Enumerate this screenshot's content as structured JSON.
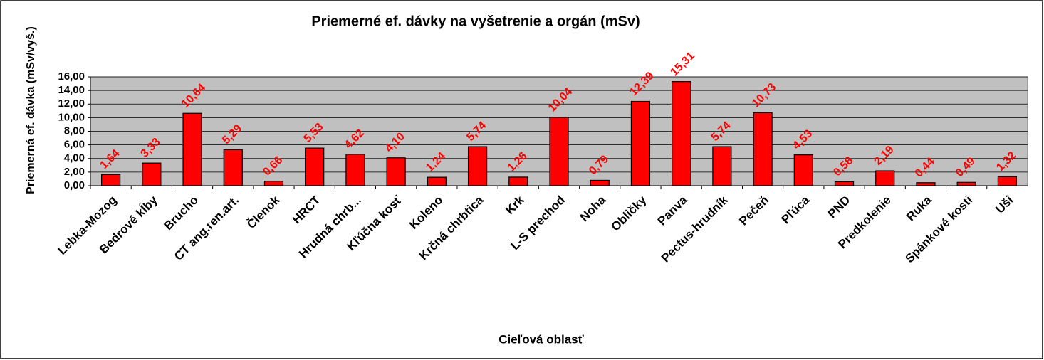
{
  "chart_data": {
    "type": "bar",
    "title": "Priemerné ef. dávky na vyšetrenie a orgán (mSv)",
    "x_label": "Cieľová oblasť",
    "y_label": "Priemerná ef. dávka (mSv/vyš.)",
    "categories": [
      "Lebka-Mozog",
      "Bedrové kĺby",
      "Brucho",
      "CT ang.ren.art.",
      "Členok",
      "HRCT",
      "Hrudná chrb...",
      "Kľúčna kosť",
      "Koleno",
      "Krčná chrbtica",
      "Krk",
      "L-S prechod",
      "Noha",
      "Obličky",
      "Panva",
      "Pectus-hrudník",
      "Pečeň",
      "Pľúca",
      "PND",
      "Predkolenie",
      "Ruka",
      "Spánkové kosti",
      "Uši"
    ],
    "values": [
      1.64,
      3.33,
      10.64,
      5.29,
      0.66,
      5.53,
      4.62,
      4.1,
      1.24,
      5.74,
      1.26,
      10.04,
      0.79,
      12.39,
      15.31,
      5.74,
      10.73,
      4.53,
      0.58,
      2.19,
      0.44,
      0.49,
      1.32
    ],
    "value_labels": [
      "1,64",
      "3,33",
      "10,64",
      "5,29",
      "0,66",
      "5,53",
      "4,62",
      "4,10",
      "1,24",
      "5,74",
      "1,26",
      "10,04",
      "0,79",
      "12,39",
      "15,31",
      "5,74",
      "10,73",
      "4,53",
      "0,58",
      "2,19",
      "0,44",
      "0,49",
      "1,32"
    ],
    "color": "#ff0000",
    "label_color": "#ff0000",
    "plot_background": "#c0c0c0",
    "ylim": [
      0,
      16
    ],
    "yticks": [
      {
        "value": 0,
        "label": "0,00"
      },
      {
        "value": 2,
        "label": "2,00"
      },
      {
        "value": 4,
        "label": "4,00"
      },
      {
        "value": 6,
        "label": "6,00"
      },
      {
        "value": 8,
        "label": "8,00"
      },
      {
        "value": 10,
        "label": "10,00"
      },
      {
        "value": 12,
        "label": "12,00"
      },
      {
        "value": 14,
        "label": "14,00"
      },
      {
        "value": 16,
        "label": "16,00"
      }
    ],
    "grid": true
  }
}
